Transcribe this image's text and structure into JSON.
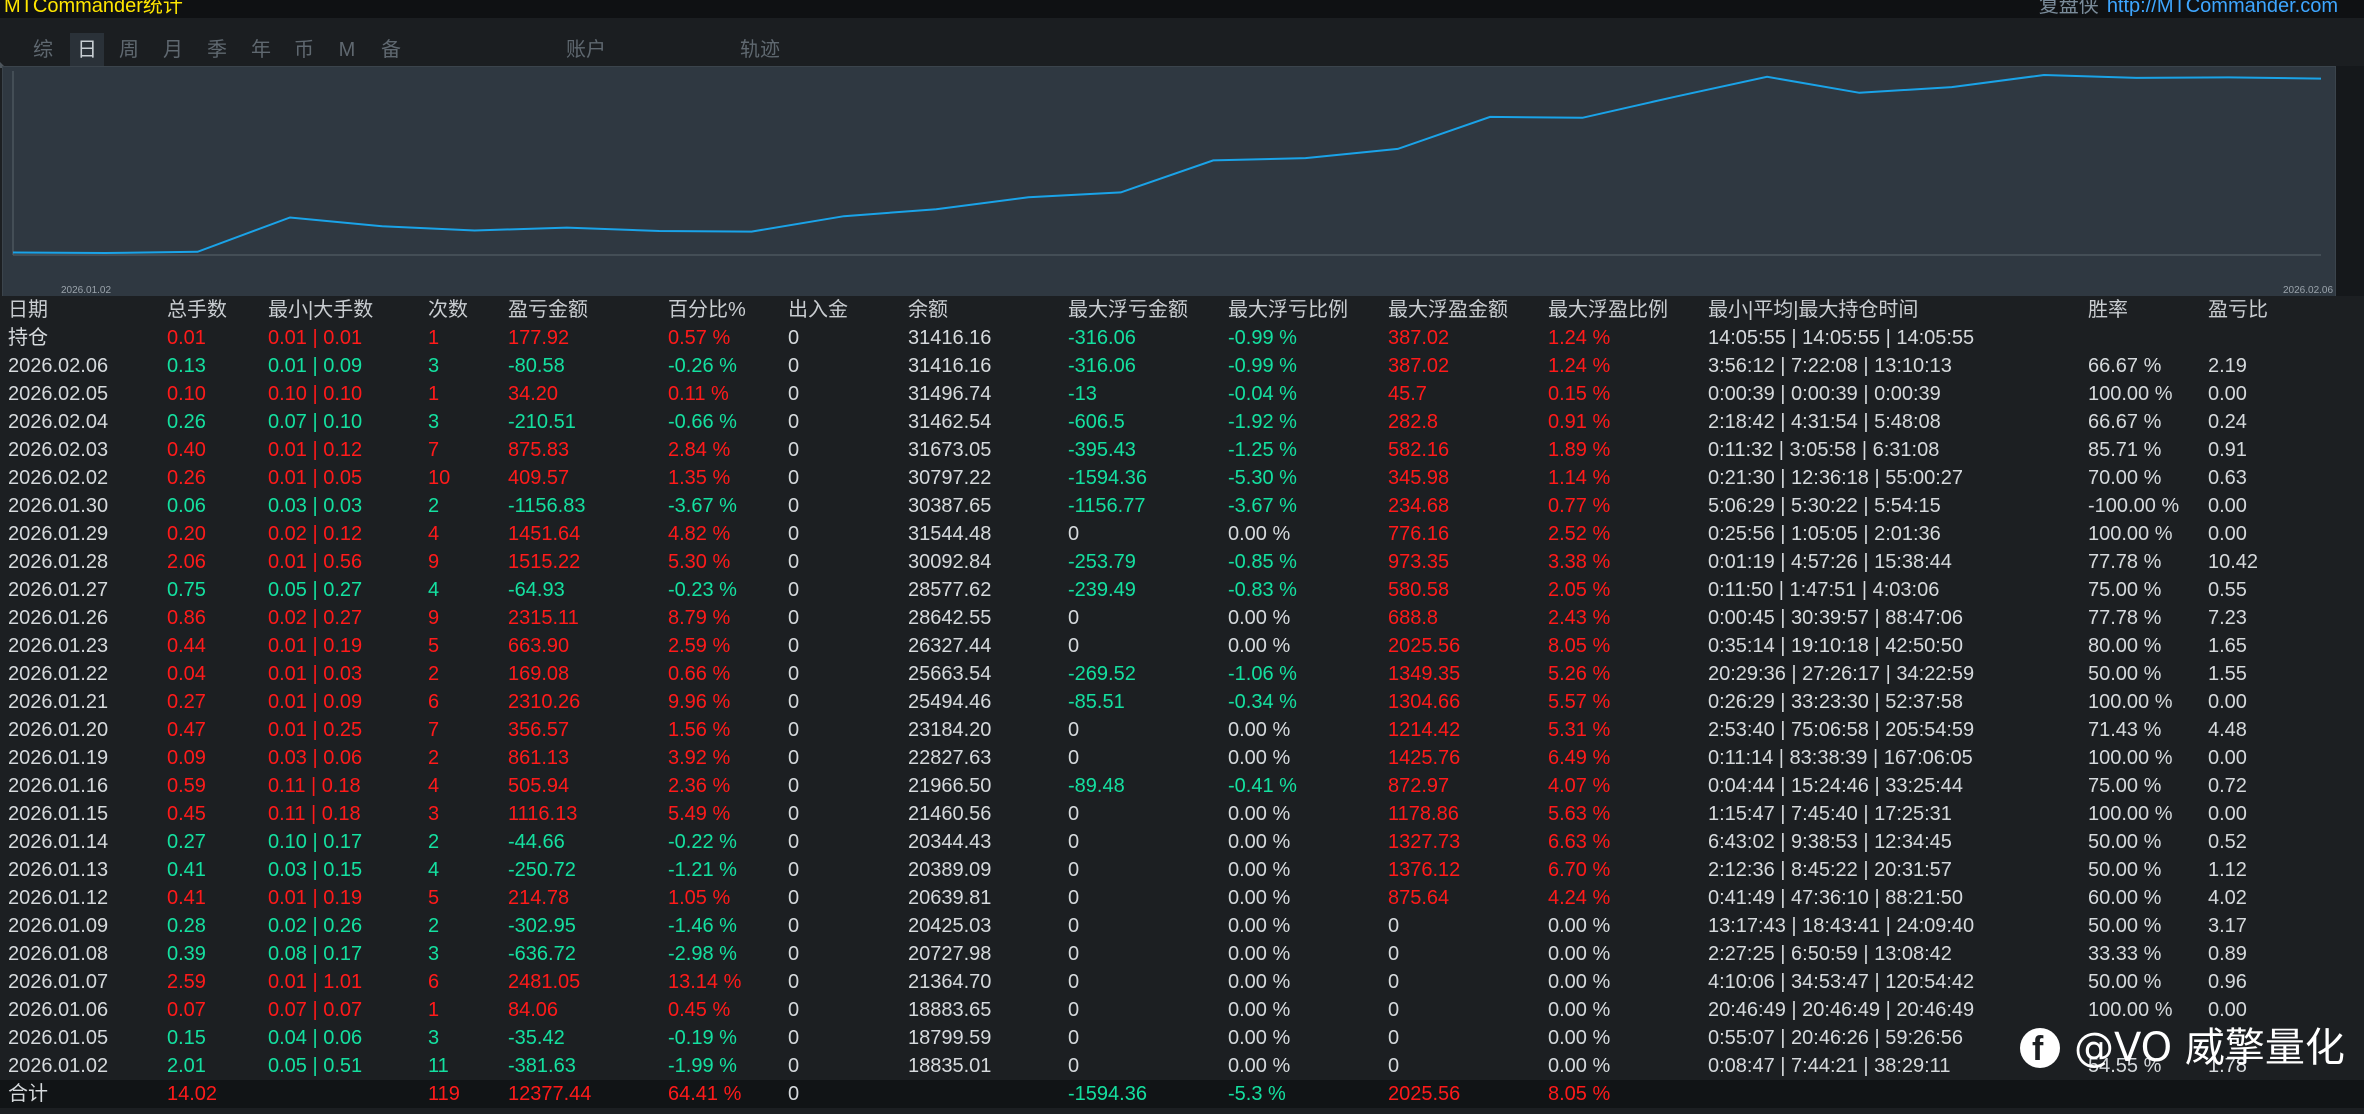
{
  "header": {
    "app_title": "MTCommander统计",
    "right_label": "复盘侠",
    "right_link": "http://MTCommander.com"
  },
  "tabs": [
    {
      "label": "综",
      "active": false
    },
    {
      "label": "日",
      "active": true
    },
    {
      "label": "周",
      "active": false
    },
    {
      "label": "月",
      "active": false
    },
    {
      "label": "季",
      "active": false
    },
    {
      "label": "年",
      "active": false
    },
    {
      "label": "币",
      "active": false
    },
    {
      "label": "M",
      "active": false
    },
    {
      "label": "备",
      "active": false
    },
    {
      "label": "账户",
      "active": false
    },
    {
      "label": "轨迹",
      "active": false
    }
  ],
  "chart_data": {
    "type": "line",
    "x_start_label": "2026.01.02",
    "x_end_label": "2026.02.06",
    "x": [
      "2026.01.02",
      "2026.01.05",
      "2026.01.06",
      "2026.01.07",
      "2026.01.08",
      "2026.01.09",
      "2026.01.12",
      "2026.01.13",
      "2026.01.14",
      "2026.01.15",
      "2026.01.16",
      "2026.01.19",
      "2026.01.20",
      "2026.01.21",
      "2026.01.22",
      "2026.01.23",
      "2026.01.26",
      "2026.01.27",
      "2026.01.28",
      "2026.01.29",
      "2026.01.30",
      "2026.02.02",
      "2026.02.03",
      "2026.02.04",
      "2026.02.05",
      "2026.02.06"
    ],
    "values": [
      18835.01,
      18799.59,
      18883.65,
      21364.7,
      20727.98,
      20425.03,
      20639.81,
      20389.09,
      20344.43,
      21460.56,
      21966.5,
      22827.63,
      23184.2,
      25494.46,
      25663.54,
      26327.44,
      28642.55,
      28577.62,
      30092.84,
      31544.48,
      30387.65,
      30797.22,
      31673.05,
      31462.54,
      31496.74,
      31416.16
    ],
    "line_color": "#1aa3e8"
  },
  "table": {
    "headers": [
      "日期",
      "总手数",
      "最小|大手数",
      "次数",
      "盈亏金额",
      "百分比%",
      "出入金",
      "余额",
      "最大浮亏金额",
      "最大浮亏比例",
      "最大浮盈金额",
      "最大浮盈比例",
      "最小|平均|最大持仓时间",
      "胜率",
      "盈亏比"
    ],
    "rows": [
      {
        "date": "持仓",
        "lots": "0.01",
        "minmax": "0.01 | 0.01",
        "count": "1",
        "pnl": "177.92",
        "pct": "0.57 %",
        "io": "0",
        "bal": "31416.16",
        "fl": "-316.06",
        "flp": "-0.99 %",
        "fp": "387.02",
        "fpp": "1.24 %",
        "time": "14:05:55 | 14:05:55 | 14:05:55",
        "win": "",
        "rr": "",
        "c": "p"
      },
      {
        "date": "2026.02.06",
        "lots": "0.13",
        "minmax": "0.01 | 0.09",
        "count": "3",
        "pnl": "-80.58",
        "pct": "-0.26 %",
        "io": "0",
        "bal": "31416.16",
        "fl": "-316.06",
        "flp": "-0.99 %",
        "fp": "387.02",
        "fpp": "1.24 %",
        "time": "3:56:12 | 7:22:08 | 13:10:13",
        "win": "66.67 %",
        "rr": "2.19",
        "c": "n"
      },
      {
        "date": "2026.02.05",
        "lots": "0.10",
        "minmax": "0.10 | 0.10",
        "count": "1",
        "pnl": "34.20",
        "pct": "0.11 %",
        "io": "0",
        "bal": "31496.74",
        "fl": "-13",
        "flp": "-0.04 %",
        "fp": "45.7",
        "fpp": "0.15 %",
        "time": "0:00:39 | 0:00:39 | 0:00:39",
        "win": "100.00 %",
        "rr": "0.00",
        "c": "p"
      },
      {
        "date": "2026.02.04",
        "lots": "0.26",
        "minmax": "0.07 | 0.10",
        "count": "3",
        "pnl": "-210.51",
        "pct": "-0.66 %",
        "io": "0",
        "bal": "31462.54",
        "fl": "-606.5",
        "flp": "-1.92 %",
        "fp": "282.8",
        "fpp": "0.91 %",
        "time": "2:18:42 | 4:31:54 | 5:48:08",
        "win": "66.67 %",
        "rr": "0.24",
        "c": "n"
      },
      {
        "date": "2026.02.03",
        "lots": "0.40",
        "minmax": "0.01 | 0.12",
        "count": "7",
        "pnl": "875.83",
        "pct": "2.84 %",
        "io": "0",
        "bal": "31673.05",
        "fl": "-395.43",
        "flp": "-1.25 %",
        "fp": "582.16",
        "fpp": "1.89 %",
        "time": "0:11:32 | 3:05:58 | 6:31:08",
        "win": "85.71 %",
        "rr": "0.91",
        "c": "p"
      },
      {
        "date": "2026.02.02",
        "lots": "0.26",
        "minmax": "0.01 | 0.05",
        "count": "10",
        "pnl": "409.57",
        "pct": "1.35 %",
        "io": "0",
        "bal": "30797.22",
        "fl": "-1594.36",
        "flp": "-5.30 %",
        "fp": "345.98",
        "fpp": "1.14 %",
        "time": "0:21:30 | 12:36:18 | 55:00:27",
        "win": "70.00 %",
        "rr": "0.63",
        "c": "p"
      },
      {
        "date": "2026.01.30",
        "lots": "0.06",
        "minmax": "0.03 | 0.03",
        "count": "2",
        "pnl": "-1156.83",
        "pct": "-3.67 %",
        "io": "0",
        "bal": "30387.65",
        "fl": "-1156.77",
        "flp": "-3.67 %",
        "fp": "234.68",
        "fpp": "0.77 %",
        "time": "5:06:29 | 5:30:22 | 5:54:15",
        "win": "-100.00 %",
        "rr": "0.00",
        "c": "n"
      },
      {
        "date": "2026.01.29",
        "lots": "0.20",
        "minmax": "0.02 | 0.12",
        "count": "4",
        "pnl": "1451.64",
        "pct": "4.82 %",
        "io": "0",
        "bal": "31544.48",
        "fl": "0",
        "flp": "0.00 %",
        "fp": "776.16",
        "fpp": "2.52 %",
        "time": "0:25:56 | 1:05:05 | 2:01:36",
        "win": "100.00 %",
        "rr": "0.00",
        "c": "p"
      },
      {
        "date": "2026.01.28",
        "lots": "2.06",
        "minmax": "0.01 | 0.56",
        "count": "9",
        "pnl": "1515.22",
        "pct": "5.30 %",
        "io": "0",
        "bal": "30092.84",
        "fl": "-253.79",
        "flp": "-0.85 %",
        "fp": "973.35",
        "fpp": "3.38 %",
        "time": "0:01:19 | 4:57:26 | 15:38:44",
        "win": "77.78 %",
        "rr": "10.42",
        "c": "p"
      },
      {
        "date": "2026.01.27",
        "lots": "0.75",
        "minmax": "0.05 | 0.27",
        "count": "4",
        "pnl": "-64.93",
        "pct": "-0.23 %",
        "io": "0",
        "bal": "28577.62",
        "fl": "-239.49",
        "flp": "-0.83 %",
        "fp": "580.58",
        "fpp": "2.05 %",
        "time": "0:11:50 | 1:47:51 | 4:03:06",
        "win": "75.00 %",
        "rr": "0.55",
        "c": "n"
      },
      {
        "date": "2026.01.26",
        "lots": "0.86",
        "minmax": "0.02 | 0.27",
        "count": "9",
        "pnl": "2315.11",
        "pct": "8.79 %",
        "io": "0",
        "bal": "28642.55",
        "fl": "0",
        "flp": "0.00 %",
        "fp": "688.8",
        "fpp": "2.43 %",
        "time": "0:00:45 | 30:39:57 | 88:47:06",
        "win": "77.78 %",
        "rr": "7.23",
        "c": "p"
      },
      {
        "date": "2026.01.23",
        "lots": "0.44",
        "minmax": "0.01 | 0.19",
        "count": "5",
        "pnl": "663.90",
        "pct": "2.59 %",
        "io": "0",
        "bal": "26327.44",
        "fl": "0",
        "flp": "0.00 %",
        "fp": "2025.56",
        "fpp": "8.05 %",
        "time": "0:35:14 | 19:10:18 | 42:50:50",
        "win": "80.00 %",
        "rr": "1.65",
        "c": "p"
      },
      {
        "date": "2026.01.22",
        "lots": "0.04",
        "minmax": "0.01 | 0.03",
        "count": "2",
        "pnl": "169.08",
        "pct": "0.66 %",
        "io": "0",
        "bal": "25663.54",
        "fl": "-269.52",
        "flp": "-1.06 %",
        "fp": "1349.35",
        "fpp": "5.26 %",
        "time": "20:29:36 | 27:26:17 | 34:22:59",
        "win": "50.00 %",
        "rr": "1.55",
        "c": "p"
      },
      {
        "date": "2026.01.21",
        "lots": "0.27",
        "minmax": "0.01 | 0.09",
        "count": "6",
        "pnl": "2310.26",
        "pct": "9.96 %",
        "io": "0",
        "bal": "25494.46",
        "fl": "-85.51",
        "flp": "-0.34 %",
        "fp": "1304.66",
        "fpp": "5.57 %",
        "time": "0:26:29 | 33:23:30 | 52:37:58",
        "win": "100.00 %",
        "rr": "0.00",
        "c": "p"
      },
      {
        "date": "2026.01.20",
        "lots": "0.47",
        "minmax": "0.01 | 0.25",
        "count": "7",
        "pnl": "356.57",
        "pct": "1.56 %",
        "io": "0",
        "bal": "23184.20",
        "fl": "0",
        "flp": "0.00 %",
        "fp": "1214.42",
        "fpp": "5.31 %",
        "time": "2:53:40 | 75:06:58 | 205:54:59",
        "win": "71.43 %",
        "rr": "4.48",
        "c": "p"
      },
      {
        "date": "2026.01.19",
        "lots": "0.09",
        "minmax": "0.03 | 0.06",
        "count": "2",
        "pnl": "861.13",
        "pct": "3.92 %",
        "io": "0",
        "bal": "22827.63",
        "fl": "0",
        "flp": "0.00 %",
        "fp": "1425.76",
        "fpp": "6.49 %",
        "time": "0:11:14 | 83:38:39 | 167:06:05",
        "win": "100.00 %",
        "rr": "0.00",
        "c": "p"
      },
      {
        "date": "2026.01.16",
        "lots": "0.59",
        "minmax": "0.11 | 0.18",
        "count": "4",
        "pnl": "505.94",
        "pct": "2.36 %",
        "io": "0",
        "bal": "21966.50",
        "fl": "-89.48",
        "flp": "-0.41 %",
        "fp": "872.97",
        "fpp": "4.07 %",
        "time": "0:04:44 | 15:24:46 | 33:25:44",
        "win": "75.00 %",
        "rr": "0.72",
        "c": "p"
      },
      {
        "date": "2026.01.15",
        "lots": "0.45",
        "minmax": "0.11 | 0.18",
        "count": "3",
        "pnl": "1116.13",
        "pct": "5.49 %",
        "io": "0",
        "bal": "21460.56",
        "fl": "0",
        "flp": "0.00 %",
        "fp": "1178.86",
        "fpp": "5.63 %",
        "time": "1:15:47 | 7:45:40 | 17:25:31",
        "win": "100.00 %",
        "rr": "0.00",
        "c": "p"
      },
      {
        "date": "2026.01.14",
        "lots": "0.27",
        "minmax": "0.10 | 0.17",
        "count": "2",
        "pnl": "-44.66",
        "pct": "-0.22 %",
        "io": "0",
        "bal": "20344.43",
        "fl": "0",
        "flp": "0.00 %",
        "fp": "1327.73",
        "fpp": "6.63 %",
        "time": "6:43:02 | 9:38:53 | 12:34:45",
        "win": "50.00 %",
        "rr": "0.52",
        "c": "n"
      },
      {
        "date": "2026.01.13",
        "lots": "0.41",
        "minmax": "0.03 | 0.15",
        "count": "4",
        "pnl": "-250.72",
        "pct": "-1.21 %",
        "io": "0",
        "bal": "20389.09",
        "fl": "0",
        "flp": "0.00 %",
        "fp": "1376.12",
        "fpp": "6.70 %",
        "time": "2:12:36 | 8:45:22 | 20:31:57",
        "win": "50.00 %",
        "rr": "1.12",
        "c": "n"
      },
      {
        "date": "2026.01.12",
        "lots": "0.41",
        "minmax": "0.01 | 0.19",
        "count": "5",
        "pnl": "214.78",
        "pct": "1.05 %",
        "io": "0",
        "bal": "20639.81",
        "fl": "0",
        "flp": "0.00 %",
        "fp": "875.64",
        "fpp": "4.24 %",
        "time": "0:41:49 | 47:36:10 | 88:21:50",
        "win": "60.00 %",
        "rr": "4.02",
        "c": "p"
      },
      {
        "date": "2026.01.09",
        "lots": "0.28",
        "minmax": "0.02 | 0.26",
        "count": "2",
        "pnl": "-302.95",
        "pct": "-1.46 %",
        "io": "0",
        "bal": "20425.03",
        "fl": "0",
        "flp": "0.00 %",
        "fp": "0",
        "fpp": "0.00 %",
        "time": "13:17:43 | 18:43:41 | 24:09:40",
        "win": "50.00 %",
        "rr": "3.17",
        "c": "n"
      },
      {
        "date": "2026.01.08",
        "lots": "0.39",
        "minmax": "0.08 | 0.17",
        "count": "3",
        "pnl": "-636.72",
        "pct": "-2.98 %",
        "io": "0",
        "bal": "20727.98",
        "fl": "0",
        "flp": "0.00 %",
        "fp": "0",
        "fpp": "0.00 %",
        "time": "2:27:25 | 6:50:59 | 13:08:42",
        "win": "33.33 %",
        "rr": "0.89",
        "c": "n"
      },
      {
        "date": "2026.01.07",
        "lots": "2.59",
        "minmax": "0.01 | 1.01",
        "count": "6",
        "pnl": "2481.05",
        "pct": "13.14 %",
        "io": "0",
        "bal": "21364.70",
        "fl": "0",
        "flp": "0.00 %",
        "fp": "0",
        "fpp": "0.00 %",
        "time": "4:10:06 | 34:53:47 | 120:54:42",
        "win": "50.00 %",
        "rr": "0.96",
        "c": "p"
      },
      {
        "date": "2026.01.06",
        "lots": "0.07",
        "minmax": "0.07 | 0.07",
        "count": "1",
        "pnl": "84.06",
        "pct": "0.45 %",
        "io": "0",
        "bal": "18883.65",
        "fl": "0",
        "flp": "0.00 %",
        "fp": "0",
        "fpp": "0.00 %",
        "time": "20:46:49 | 20:46:49 | 20:46:49",
        "win": "100.00 %",
        "rr": "0.00",
        "c": "p"
      },
      {
        "date": "2026.01.05",
        "lots": "0.15",
        "minmax": "0.04 | 0.06",
        "count": "3",
        "pnl": "-35.42",
        "pct": "-0.19 %",
        "io": "0",
        "bal": "18799.59",
        "fl": "0",
        "flp": "0.00 %",
        "fp": "0",
        "fpp": "0.00 %",
        "time": "0:55:07 | 20:46:26 | 59:26:56",
        "win": "",
        "rr": "",
        "c": "n"
      },
      {
        "date": "2026.01.02",
        "lots": "2.01",
        "minmax": "0.05 | 0.51",
        "count": "11",
        "pnl": "-381.63",
        "pct": "-1.99 %",
        "io": "0",
        "bal": "18835.01",
        "fl": "0",
        "flp": "0.00 %",
        "fp": "0",
        "fpp": "0.00 %",
        "time": "0:08:47 | 7:44:21 | 38:29:11",
        "win": "54.55 %",
        "rr": "1.78",
        "c": "n"
      }
    ],
    "total": {
      "date": "合计",
      "lots": "14.02",
      "minmax": "",
      "count": "119",
      "pnl": "12377.44",
      "pct": "64.41 %",
      "io": "0",
      "bal": "",
      "fl": "-1594.36",
      "flp": "-5.3 %",
      "fp": "2025.56",
      "fpp": "8.05 %",
      "time": "",
      "win": "",
      "rr": ""
    }
  },
  "watermark": {
    "text": "@VO 威擎量化",
    "logo_letter": "f"
  }
}
